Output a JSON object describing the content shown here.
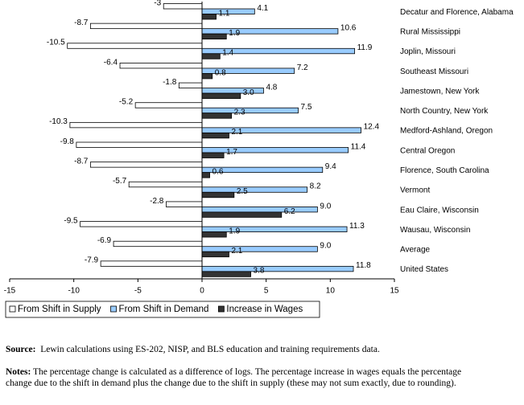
{
  "chart_data": {
    "type": "hbar",
    "categories": [
      "Decatur and Florence, Alabama",
      "Rural Mississippi",
      "Joplin, Missouri",
      "Southeast Missouri",
      "Jamestown, New York",
      "North Country, New York",
      "Medford-Ashland, Oregon",
      "Central Oregon",
      "Florence, South Carolina",
      "Vermont",
      "Eau Claire, Wisconsin",
      "Wausau, Wisconsin",
      "Average",
      "United States"
    ],
    "series": [
      {
        "name": "From Shift in Supply",
        "color": "#ffffff",
        "values": [
          -3,
          -8.7,
          -10.5,
          -6.4,
          -1.8,
          -5.2,
          -10.3,
          -9.8,
          -8.7,
          -5.7,
          -2.8,
          -9.5,
          -6.9,
          -7.9
        ]
      },
      {
        "name": "From Shift in Demand",
        "color": "#99ccff",
        "values": [
          4.1,
          10.6,
          11.9,
          7.2,
          4.8,
          7.5,
          12.4,
          11.4,
          9.4,
          8.2,
          9,
          11.3,
          9,
          11.8
        ],
        "value_labels": [
          "4.1",
          "10.6",
          "11.9",
          "7.2",
          "4.8",
          "7.5",
          "12.4",
          "11.4",
          "9.4",
          "8.2",
          "9.0",
          "11.3",
          "9.0",
          "11.8"
        ]
      },
      {
        "name": "Increase in Wages",
        "color": "#333333",
        "values": [
          1.1,
          1.9,
          1.4,
          0.8,
          3,
          2.3,
          2.1,
          1.7,
          0.6,
          2.5,
          6.2,
          1.9,
          2.1,
          3.8
        ],
        "value_labels": [
          "1.1",
          "1.9",
          "1.4",
          "0.8",
          "3.0",
          "2.3",
          "2.1",
          "1.7",
          "0.6",
          "2.5",
          "6.2",
          "1.9",
          "2.1",
          "3.8"
        ]
      }
    ],
    "xlim": [
      -15,
      15
    ],
    "xticks": [
      -15,
      -10,
      -5,
      0,
      5,
      10,
      15
    ],
    "source_label": "Source:",
    "source": "Lewin calculations using ES-202, NISP, and BLS education and training requirements data.",
    "notes_label": "Notes:",
    "notes": "The percentage change is calculated as a difference of logs. The percentage increase in wages equals the percentage change due to the shift in demand plus the change due to the shift in supply (these may not sum exactly, due to rounding)."
  }
}
